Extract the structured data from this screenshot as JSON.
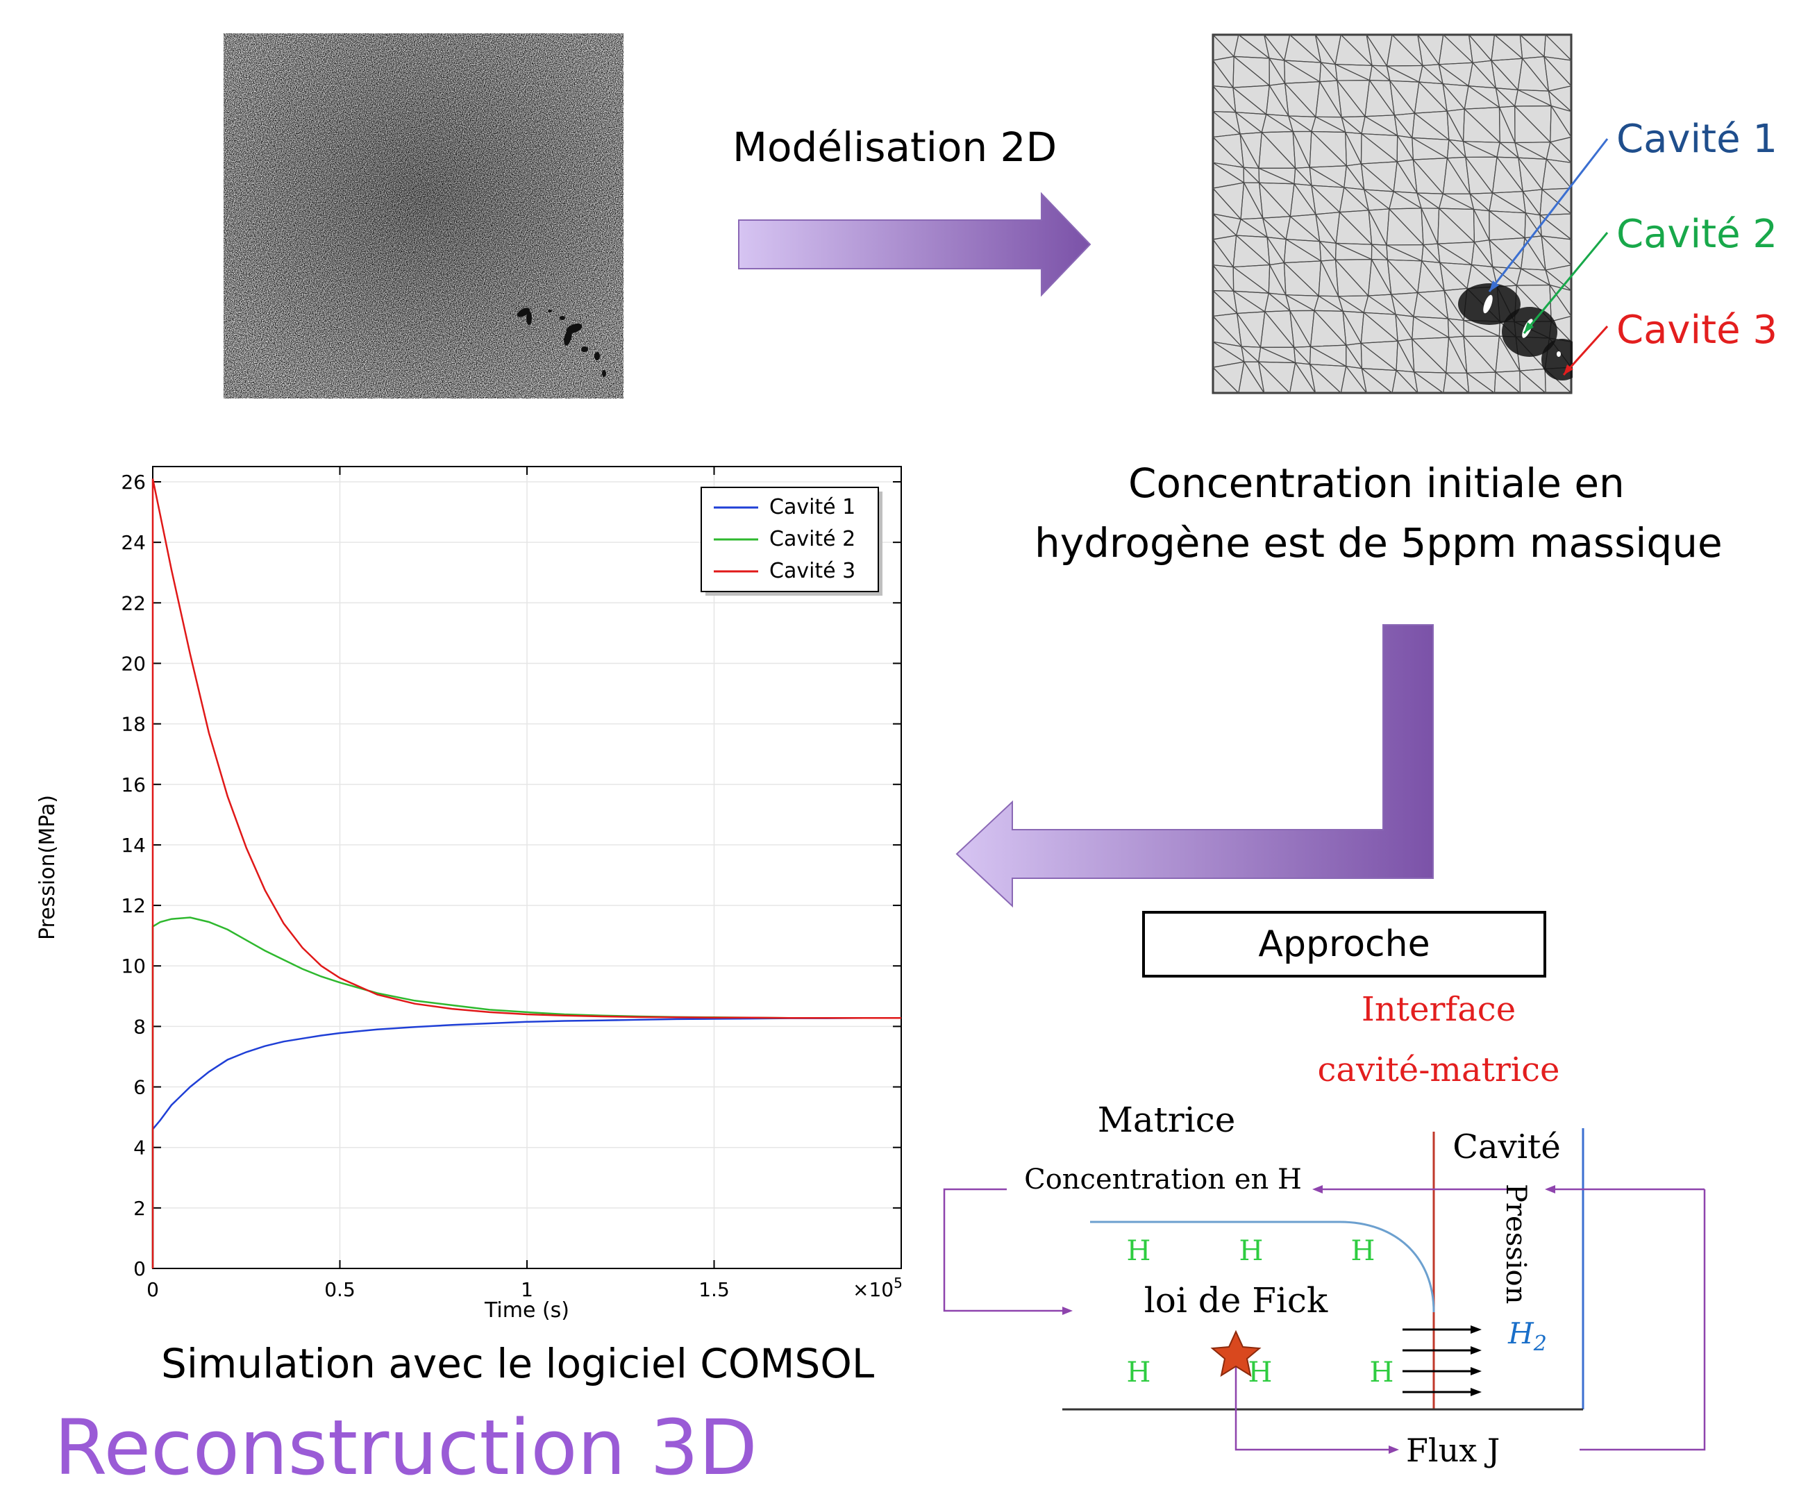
{
  "top": {
    "arrow_label": "Modélisation 2D",
    "cavities": [
      {
        "label": "Cavité 1",
        "color": "#1f4e8c"
      },
      {
        "label": "Cavité 2",
        "color": "#18a84a"
      },
      {
        "label": "Cavité 3",
        "color": "#e31e1e"
      }
    ]
  },
  "middle": {
    "concentration_line1": "Concentration initiale en",
    "concentration_line2": "hydrogène est de 5ppm massique",
    "approche": "Approche"
  },
  "chart_caption": "Simulation avec le logiciel COMSOL",
  "bottom_title": "Reconstruction 3D",
  "schematic": {
    "interface_line1": "Interface",
    "interface_line2": "cavité-matrice",
    "matrice": "Matrice",
    "cavite": "Cavité",
    "concentration": "Concentration en H",
    "pression": "Pression",
    "loi": "loi de Fick",
    "h": "H",
    "h2_base": "H",
    "h2_sub": "2",
    "flux": "Flux J",
    "colors": {
      "purple": "#8e44ad",
      "red": "#c0392b",
      "green": "#2ecc40",
      "blue": "#1a6fc9",
      "star": "#d9481e"
    }
  },
  "chart_data": {
    "type": "line",
    "xlabel": "Time (s)",
    "ylabel": "Pression(MPa)",
    "x_multiplier_base": "×10",
    "x_multiplier_exp": "5",
    "xlim": [
      0,
      2.0
    ],
    "ylim": [
      0,
      26
    ],
    "xticks": [
      0,
      0.5,
      1,
      1.5
    ],
    "xtick_labels": [
      "0",
      "0.5",
      "1",
      "1.5"
    ],
    "yticks": [
      0,
      2,
      4,
      6,
      8,
      10,
      12,
      14,
      16,
      18,
      20,
      22,
      24,
      26
    ],
    "grid": true,
    "legend_position": "top-right",
    "x": [
      0,
      0.02,
      0.05,
      0.1,
      0.15,
      0.2,
      0.25,
      0.3,
      0.35,
      0.4,
      0.45,
      0.5,
      0.6,
      0.7,
      0.8,
      0.9,
      1.0,
      1.1,
      1.2,
      1.3,
      1.4,
      1.5,
      1.6,
      1.7,
      1.8,
      1.9,
      2.0
    ],
    "series": [
      {
        "name": "Cavité 1",
        "color": "#1f3fd6",
        "values": [
          4.6,
          4.9,
          5.4,
          6.0,
          6.5,
          6.9,
          7.15,
          7.35,
          7.5,
          7.6,
          7.7,
          7.78,
          7.9,
          7.98,
          8.05,
          8.1,
          8.15,
          8.18,
          8.2,
          8.22,
          8.24,
          8.25,
          8.26,
          8.27,
          8.27,
          8.28,
          8.28
        ]
      },
      {
        "name": "Cavité 2",
        "color": "#2eb82e",
        "values": [
          11.3,
          11.45,
          11.55,
          11.6,
          11.45,
          11.2,
          10.85,
          10.5,
          10.2,
          9.9,
          9.65,
          9.45,
          9.1,
          8.85,
          8.7,
          8.55,
          8.47,
          8.4,
          8.36,
          8.33,
          8.31,
          8.3,
          8.29,
          8.28,
          8.28,
          8.28,
          8.28
        ]
      },
      {
        "name": "Cavité 3",
        "color": "#e01818",
        "values": [
          26.1,
          24.9,
          23.1,
          20.3,
          17.7,
          15.6,
          13.9,
          12.5,
          11.4,
          10.6,
          10.0,
          9.6,
          9.05,
          8.75,
          8.58,
          8.47,
          8.4,
          8.36,
          8.33,
          8.31,
          8.3,
          8.29,
          8.29,
          8.28,
          8.28,
          8.28,
          8.28
        ]
      }
    ]
  }
}
